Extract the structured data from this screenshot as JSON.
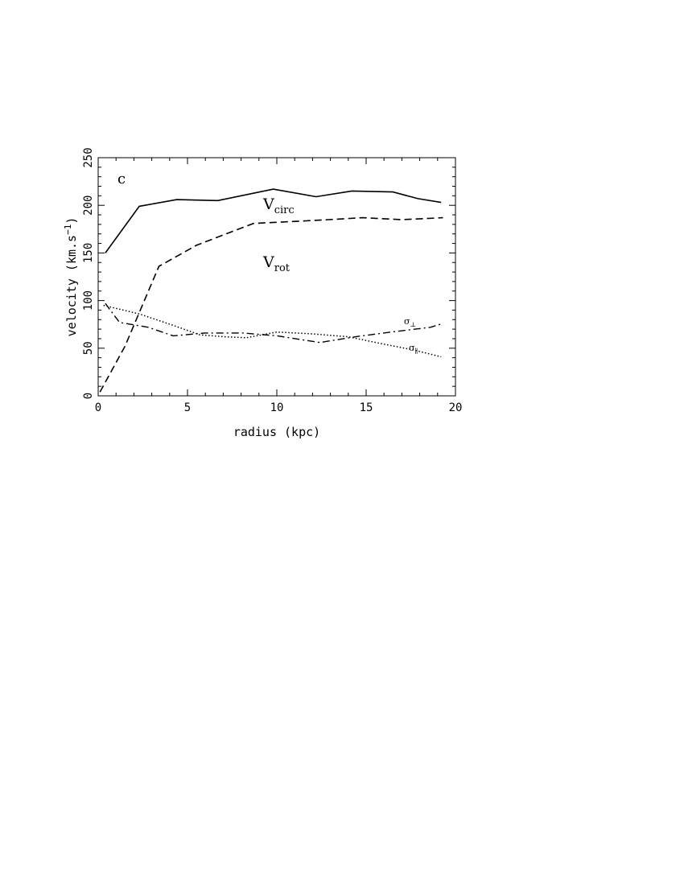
{
  "chart_data": {
    "type": "line",
    "panel_label": "c",
    "xlabel": "radius (kpc)",
    "ylabel": {
      "main": "velocity (km.s",
      "sup": "−1",
      "close": ")"
    },
    "xlim": [
      0,
      20
    ],
    "ylim": [
      0,
      250
    ],
    "x_ticks": [
      0,
      5,
      10,
      15,
      20
    ],
    "y_ticks": [
      0,
      50,
      100,
      150,
      200,
      250
    ],
    "grid": false,
    "series": [
      {
        "name": "Vcirc",
        "label_main": "V",
        "label_sub": "circ",
        "style": "solid",
        "points": [
          [
            0.4,
            150
          ],
          [
            2.3,
            199
          ],
          [
            4.4,
            206
          ],
          [
            6.7,
            205
          ],
          [
            9.8,
            217
          ],
          [
            12.2,
            209
          ],
          [
            14.2,
            215
          ],
          [
            16.5,
            214
          ],
          [
            17.9,
            207
          ],
          [
            19.2,
            203
          ]
        ]
      },
      {
        "name": "Vrot",
        "label_main": "V",
        "label_sub": "rot",
        "style": "dashed",
        "points": [
          [
            0.1,
            4
          ],
          [
            1.5,
            52
          ],
          [
            3.4,
            136
          ],
          [
            5.5,
            158
          ],
          [
            7.3,
            171
          ],
          [
            8.7,
            181
          ],
          [
            10.9,
            183
          ],
          [
            12.9,
            185
          ],
          [
            14.8,
            187
          ],
          [
            17.0,
            185
          ],
          [
            19.3,
            187
          ]
        ]
      },
      {
        "name": "σ⊥",
        "label_main": "σ",
        "label_sub": "⊥",
        "style": "dashdot",
        "points": [
          [
            0.4,
            97
          ],
          [
            1.2,
            77
          ],
          [
            2.8,
            72
          ],
          [
            4.2,
            63
          ],
          [
            6.0,
            66
          ],
          [
            8.1,
            66
          ],
          [
            10.0,
            63
          ],
          [
            11.7,
            58
          ],
          [
            12.4,
            56
          ],
          [
            14.4,
            62
          ],
          [
            16.4,
            67
          ],
          [
            18.6,
            72
          ],
          [
            19.3,
            76
          ]
        ]
      },
      {
        "name": "σ∥",
        "label_main": "σ",
        "label_sub": "∥",
        "style": "dotted",
        "points": [
          [
            0.3,
            95
          ],
          [
            2.3,
            86
          ],
          [
            4.2,
            74
          ],
          [
            5.7,
            64
          ],
          [
            7.1,
            62
          ],
          [
            8.3,
            61
          ],
          [
            10.0,
            67
          ],
          [
            12.0,
            65
          ],
          [
            14.0,
            62
          ],
          [
            15.8,
            55
          ],
          [
            17.7,
            48
          ],
          [
            19.2,
            41
          ]
        ]
      }
    ]
  }
}
